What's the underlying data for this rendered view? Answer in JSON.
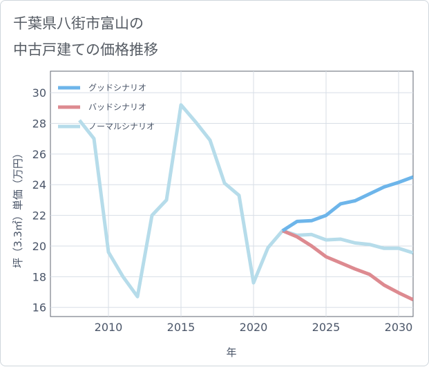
{
  "title_line1": "千葉県八街市富山の",
  "title_line2": "中古戸建ての価格推移",
  "chart_data": {
    "type": "line",
    "title": "千葉県八街市富山の中古戸建ての価格推移",
    "xlabel": "年",
    "ylabel": "坪（3.3㎡）単価（万円）",
    "xlim": [
      2006,
      2031
    ],
    "ylim": [
      15.4,
      31.4
    ],
    "x_ticks": [
      2010,
      2015,
      2020,
      2025,
      2030
    ],
    "y_ticks": [
      16,
      18,
      20,
      22,
      24,
      26,
      28,
      30
    ],
    "grid": true,
    "legend_position": "top-left",
    "series": [
      {
        "name": "グッドシナリオ",
        "color": "#6db5ea",
        "x": [
          2022,
          2023,
          2024,
          2025,
          2026,
          2027,
          2028,
          2029,
          2030,
          2031
        ],
        "values": [
          21.0,
          21.6,
          21.65,
          22.0,
          22.75,
          22.95,
          23.4,
          23.85,
          24.15,
          24.5
        ]
      },
      {
        "name": "バッドシナリオ",
        "color": "#dd8a90",
        "x": [
          2022,
          2023,
          2024,
          2025,
          2026,
          2027,
          2028,
          2029,
          2030,
          2031
        ],
        "values": [
          21.0,
          20.6,
          20.0,
          19.3,
          18.9,
          18.5,
          18.15,
          17.45,
          16.95,
          16.5
        ]
      },
      {
        "name": "ノーマルシナリオ",
        "color": "#b6dcea",
        "x": [
          2008,
          2009,
          2010,
          2011,
          2012,
          2013,
          2014,
          2015,
          2016,
          2017,
          2018,
          2019,
          2020,
          2021,
          2022,
          2023,
          2024,
          2025,
          2026,
          2027,
          2028,
          2029,
          2030,
          2031
        ],
        "values": [
          28.2,
          27.0,
          19.6,
          18.0,
          16.7,
          22.0,
          23.0,
          29.2,
          28.1,
          26.9,
          24.1,
          23.3,
          17.6,
          19.9,
          21.0,
          20.7,
          20.75,
          20.4,
          20.45,
          20.2,
          20.1,
          19.85,
          19.85,
          19.55
        ]
      }
    ]
  }
}
